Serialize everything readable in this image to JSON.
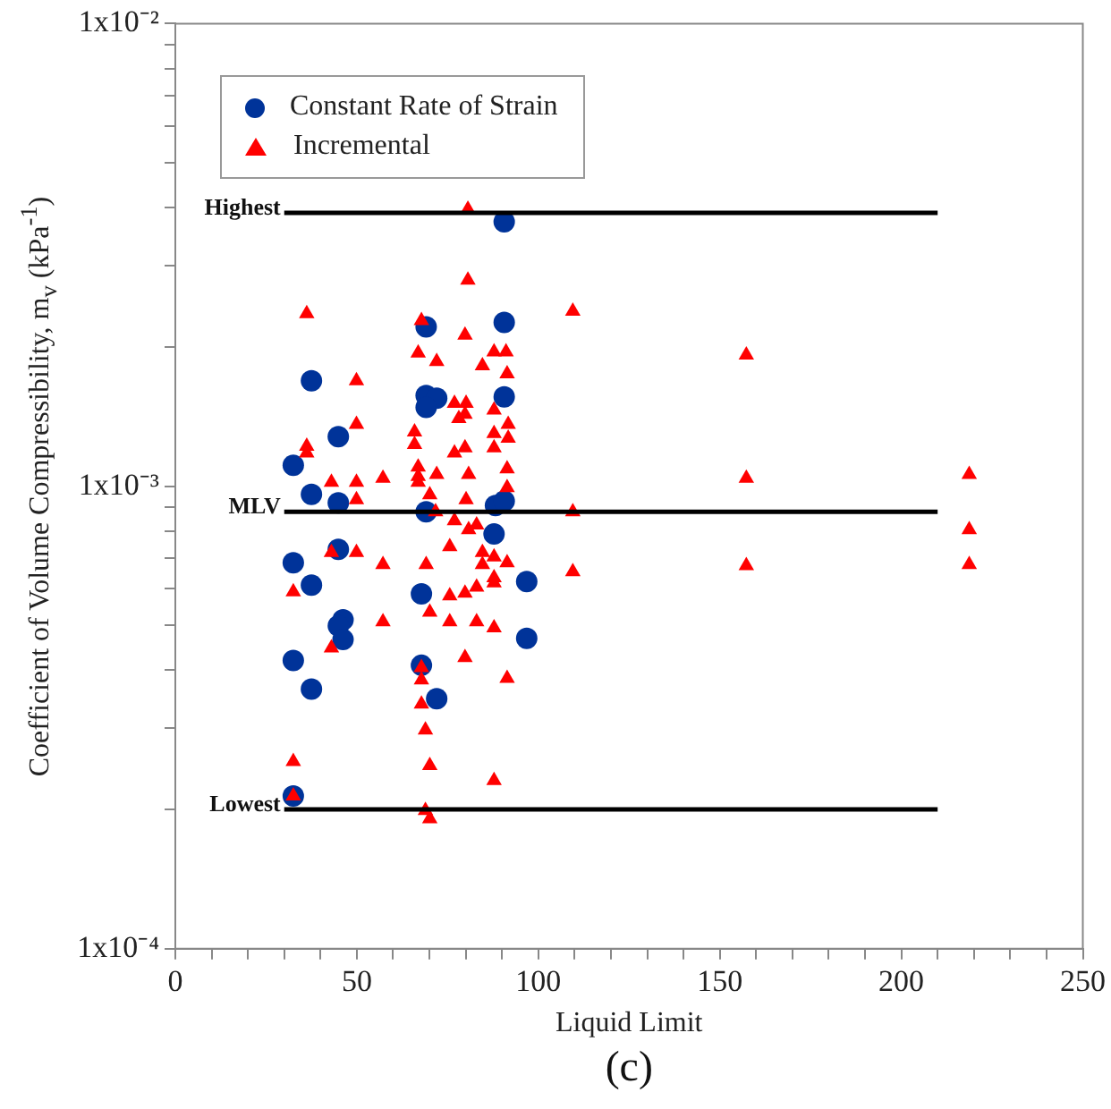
{
  "chart_data": {
    "type": "scatter",
    "xlabel": "Liquid Limit",
    "ylabel": "Coefficient of Volume Compressibility, m$_{v}$ (kPa$^{-1}$)",
    "annotations": [
      "(c)"
    ],
    "log": "y",
    "xlim": [
      0,
      250
    ],
    "ylim": [
      0.0001,
      0.01
    ],
    "xticks": [
      0,
      {
        "value": 10,
        "label": null
      },
      {
        "value": 20,
        "label": null
      },
      {
        "value": 30,
        "label": null
      },
      {
        "value": 40,
        "label": null
      },
      50,
      {
        "value": 60,
        "label": null
      },
      {
        "value": 70,
        "label": null
      },
      {
        "value": 80,
        "label": null
      },
      {
        "value": 90,
        "label": null
      },
      100,
      {
        "value": 110,
        "label": null
      },
      {
        "value": 120,
        "label": null
      },
      {
        "value": 130,
        "label": null
      },
      {
        "value": 140,
        "label": null
      },
      150,
      {
        "value": 160,
        "label": null
      },
      {
        "value": 170,
        "label": null
      },
      {
        "value": 180,
        "label": null
      },
      {
        "value": 190,
        "label": null
      },
      200,
      {
        "value": 210,
        "label": null
      },
      {
        "value": 220,
        "label": null
      },
      {
        "value": 230,
        "label": null
      },
      {
        "value": 240,
        "label": null
      },
      250
    ],
    "yticks": [
      {
        "value": 0.0001,
        "label": "1x10⁻⁴"
      },
      {
        "value": 0.0002,
        "label": null
      },
      {
        "value": 0.0003,
        "label": null
      },
      {
        "value": 0.0004,
        "label": null
      },
      {
        "value": 0.0005,
        "label": null
      },
      {
        "value": 0.0006,
        "label": null
      },
      {
        "value": 0.0007,
        "label": null
      },
      {
        "value": 0.0008,
        "label": null
      },
      {
        "value": 0.0009,
        "label": null
      },
      {
        "value": 0.001,
        "label": "1x10⁻³"
      },
      {
        "value": 0.002,
        "label": null
      },
      {
        "value": 0.003,
        "label": null
      },
      {
        "value": 0.004,
        "label": null
      },
      {
        "value": 0.005,
        "label": null
      },
      {
        "value": 0.006,
        "label": null
      },
      {
        "value": 0.007,
        "label": null
      },
      {
        "value": 0.008,
        "label": null
      },
      {
        "value": 0.009,
        "label": null
      },
      {
        "value": 0.01,
        "label": "1x10⁻²"
      }
    ],
    "grid": false,
    "legend": "top left",
    "series": [
      {
        "name": "Constant Rate of Strain",
        "marker": "circle",
        "color": "#003399",
        "x": [
          90.6,
          69.1,
          90.6,
          37.5,
          69.1,
          72.0,
          69.1,
          90.6,
          44.9,
          32.5,
          37.5,
          44.9,
          69.1,
          88.2,
          90.6,
          87.8,
          44.9,
          32.5,
          37.5,
          67.8,
          46.2,
          44.9,
          46.2,
          32.5,
          67.8,
          37.5,
          72.0,
          32.5,
          96.8,
          96.8
        ],
        "values": [
          0.00373,
          0.00221,
          0.00226,
          0.00169,
          0.00157,
          0.00155,
          0.00148,
          0.00156,
          0.00128,
          0.00111,
          0.00096,
          0.00092,
          0.00088,
          0.000908,
          0.000929,
          0.000788,
          0.00073,
          0.000683,
          0.000611,
          0.000585,
          0.000514,
          0.000499,
          0.000466,
          0.00042,
          0.00041,
          0.000364,
          0.000347,
          0.000214,
          0.000622,
          0.000469
        ]
      },
      {
        "name": "Incremental",
        "marker": "triangle",
        "color": "#ff0000",
        "x": [
          80.6,
          80.6,
          36.2,
          67.8,
          79.8,
          66.9,
          72.0,
          49.9,
          84.6,
          87.8,
          91.1,
          91.4,
          49.9,
          36.2,
          36.2,
          65.9,
          65.9,
          76.9,
          80.1,
          78.1,
          79.8,
          87.8,
          87.8,
          76.9,
          79.8,
          87.8,
          91.4,
          66.9,
          72.0,
          66.9,
          80.8,
          57.2,
          49.9,
          43.0,
          66.9,
          49.9,
          70.1,
          80.1,
          91.4,
          71.7,
          76.9,
          83.0,
          80.8,
          75.6,
          84.6,
          43.0,
          49.9,
          87.8,
          91.4,
          57.2,
          69.1,
          84.6,
          87.8,
          87.8,
          83.0,
          79.8,
          75.6,
          32.5,
          70.1,
          57.2,
          75.6,
          83.0,
          87.8,
          43.0,
          79.8,
          91.4,
          67.8,
          67.8,
          67.8,
          68.9,
          70.1,
          87.8,
          32.5,
          32.5,
          68.9,
          70.1,
          109.5,
          157.3,
          218.7,
          157.3,
          109.5,
          218.7,
          109.5,
          157.3,
          218.7,
          91.7,
          91.7
        ],
        "values": [
          0.00397,
          0.00279,
          0.00236,
          0.00228,
          0.00212,
          0.00194,
          0.00186,
          0.00169,
          0.00182,
          0.00195,
          0.00195,
          0.00175,
          0.00136,
          0.00122,
          0.00118,
          0.00131,
          0.00123,
          0.00151,
          0.00151,
          0.0014,
          0.00143,
          0.00146,
          0.0013,
          0.00118,
          0.00121,
          0.00121,
          0.00109,
          0.0011,
          0.00106,
          0.00105,
          0.00106,
          0.00104,
          0.00102,
          0.00102,
          0.00102,
          0.000935,
          0.000958,
          0.000935,
          0.000993,
          0.00088,
          0.000842,
          0.000824,
          0.000805,
          0.00074,
          0.000719,
          0.000719,
          0.000719,
          0.000703,
          0.000683,
          0.000677,
          0.000677,
          0.000677,
          0.000634,
          0.000618,
          0.000605,
          0.000587,
          0.000579,
          0.000591,
          0.000534,
          0.000509,
          0.000509,
          0.000509,
          0.000494,
          0.000447,
          0.000426,
          0.000384,
          0.000405,
          0.000381,
          0.000338,
          0.000297,
          0.000249,
          0.000231,
          0.000254,
          0.000214,
          0.000199,
          0.000191,
          0.00239,
          0.00192,
          0.00106,
          0.00104,
          0.00088,
          0.000805,
          0.000653,
          0.000673,
          0.000677,
          0.00127,
          0.00136
        ]
      },
      {
        "name": "Highest",
        "type": "line",
        "marker": "none",
        "color": "#000000",
        "x": [
          30,
          210
        ],
        "values": [
          0.0039,
          0.0039
        ]
      },
      {
        "name": "MLV",
        "type": "line",
        "marker": "none",
        "color": "#000000",
        "x": [
          30,
          210
        ],
        "values": [
          0.00088,
          0.00088
        ]
      },
      {
        "name": "Lowest",
        "type": "line",
        "marker": "none",
        "color": "#000000",
        "x": [
          30,
          210
        ],
        "values": [
          0.0002,
          0.0002
        ]
      }
    ]
  }
}
